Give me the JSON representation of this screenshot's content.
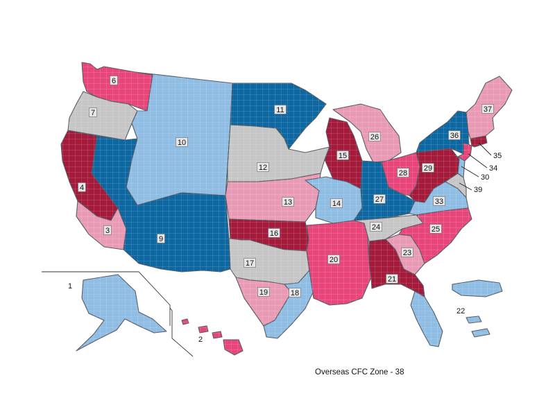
{
  "colors": {
    "dark_red": "#a31a3a",
    "pink": "#e8467a",
    "light_pink": "#e99bb5",
    "dark_blue": "#0d67a1",
    "light_blue": "#8fbde3",
    "gray": "#c6c6c6"
  },
  "zones": [
    {
      "id": "1",
      "color": "light_blue"
    },
    {
      "id": "2",
      "color": "pink"
    },
    {
      "id": "3",
      "color": "light_pink"
    },
    {
      "id": "4",
      "color": "dark_red"
    },
    {
      "id": "6",
      "color": "pink"
    },
    {
      "id": "7",
      "color": "gray"
    },
    {
      "id": "9",
      "color": "dark_blue"
    },
    {
      "id": "10",
      "color": "light_blue"
    },
    {
      "id": "11",
      "color": "dark_blue"
    },
    {
      "id": "12",
      "color": "gray"
    },
    {
      "id": "13",
      "color": "light_pink"
    },
    {
      "id": "14",
      "color": "light_blue"
    },
    {
      "id": "15",
      "color": "dark_red"
    },
    {
      "id": "16",
      "color": "dark_red"
    },
    {
      "id": "17",
      "color": "gray"
    },
    {
      "id": "18",
      "color": "light_blue"
    },
    {
      "id": "19",
      "color": "light_pink"
    },
    {
      "id": "20",
      "color": "pink"
    },
    {
      "id": "21",
      "color": "dark_red"
    },
    {
      "id": "22",
      "color": "light_blue"
    },
    {
      "id": "23",
      "color": "light_pink"
    },
    {
      "id": "24",
      "color": "gray"
    },
    {
      "id": "25",
      "color": "pink"
    },
    {
      "id": "26",
      "color": "light_pink"
    },
    {
      "id": "27",
      "color": "dark_blue"
    },
    {
      "id": "28",
      "color": "pink"
    },
    {
      "id": "29",
      "color": "dark_red"
    },
    {
      "id": "30",
      "color": "light_blue"
    },
    {
      "id": "33",
      "color": "light_blue"
    },
    {
      "id": "34",
      "color": "pink"
    },
    {
      "id": "35",
      "color": "dark_red"
    },
    {
      "id": "36",
      "color": "dark_blue"
    },
    {
      "id": "37",
      "color": "light_pink"
    },
    {
      "id": "39",
      "color": "gray"
    }
  ],
  "footnote": "Overseas CFC Zone - 38"
}
